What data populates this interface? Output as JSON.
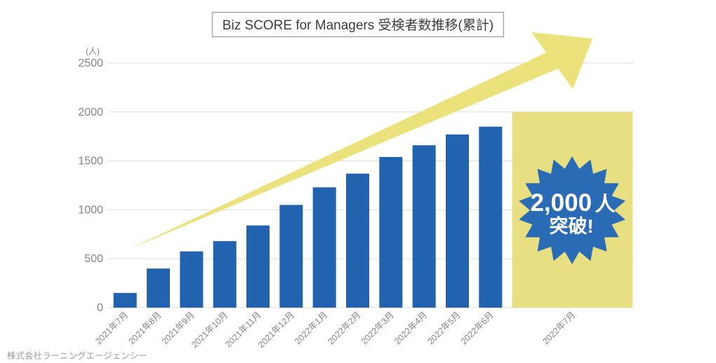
{
  "title": "Biz SCORE for Managers 受検者数推移(累計)",
  "footer": "株式会社ラーニングエージェンシー",
  "badge": {
    "number": "2,000",
    "number_suffix": "人",
    "line2": "突破!"
  },
  "colors": {
    "bar_blue": "#2163af",
    "badge_blue": "#2a6bb5",
    "highlight_yellow": "#e8de82",
    "arrow_yellow": "#ece27c",
    "grid": "#dedede",
    "axis_text": "#848484",
    "badge_text": "#ffffff"
  },
  "chart_data": {
    "type": "bar",
    "title": "Biz SCORE for Managers 受検者数推移(累計)",
    "unit_label": "(人)",
    "xlabel": "",
    "ylabel": "",
    "categories": [
      "2021年7月",
      "2021年8月",
      "2021年9月",
      "2021年10月",
      "2021年11月",
      "2021年12月",
      "2022年1月",
      "2022年2月",
      "2022年3月",
      "2022年4月",
      "2022年5月",
      "2022年6月",
      "2022年7月"
    ],
    "values": [
      150,
      400,
      575,
      680,
      840,
      1050,
      1230,
      1370,
      1540,
      1660,
      1770,
      1850,
      2000
    ],
    "highlight_index": 12,
    "highlight_annotation": "2,000人 突破!",
    "ylim": [
      0,
      2500
    ],
    "ytick_step": 500,
    "grid": true,
    "legend_position": "none",
    "annotations": [
      "growth-arrow pointing up-right",
      "starburst badge 2,000人突破! on highlighted 2022年7月 column"
    ]
  }
}
